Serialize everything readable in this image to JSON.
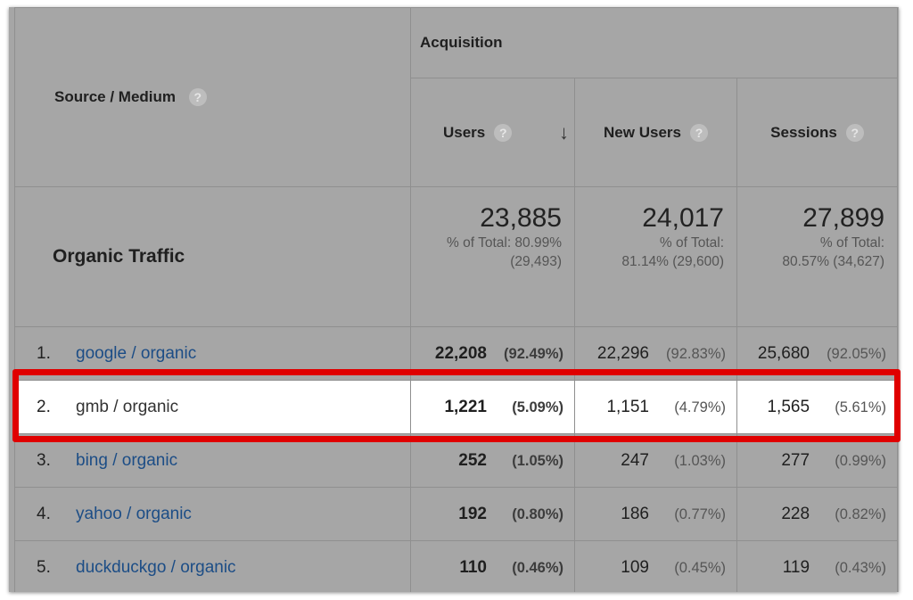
{
  "header": {
    "source_medium": "Source / Medium",
    "group": "Acquisition",
    "columns": [
      "Users",
      "New Users",
      "Sessions"
    ]
  },
  "icons": {
    "help": "question-mark-help-icon",
    "sort": "sort-descending-arrow-icon"
  },
  "totals": {
    "label": "Organic Traffic",
    "users": {
      "value": "23,885",
      "line1": "% of Total: 80.99%",
      "line2": "(29,493)"
    },
    "new_users": {
      "value": "24,017",
      "line1": "% of Total:",
      "line2": "81.14% (29,600)"
    },
    "sessions": {
      "value": "27,899",
      "line1": "% of Total:",
      "line2": "80.57% (34,627)"
    }
  },
  "rows": [
    {
      "num": "1.",
      "source": "google / organic",
      "users": "22,208",
      "users_pct": "(92.49%)",
      "new_users": "22,296",
      "new_users_pct": "(92.83%)",
      "sessions": "25,680",
      "sessions_pct": "(92.05%)"
    },
    {
      "num": "2.",
      "source": "gmb / organic",
      "users": "1,221",
      "users_pct": "(5.09%)",
      "new_users": "1,151",
      "new_users_pct": "(4.79%)",
      "sessions": "1,565",
      "sessions_pct": "(5.61%)"
    },
    {
      "num": "3.",
      "source": "bing / organic",
      "users": "252",
      "users_pct": "(1.05%)",
      "new_users": "247",
      "new_users_pct": "(1.03%)",
      "sessions": "277",
      "sessions_pct": "(0.99%)"
    },
    {
      "num": "4.",
      "source": "yahoo / organic",
      "users": "192",
      "users_pct": "(0.80%)",
      "new_users": "186",
      "new_users_pct": "(0.77%)",
      "sessions": "228",
      "sessions_pct": "(0.82%)"
    },
    {
      "num": "5.",
      "source": "duckduckgo / organic",
      "users": "110",
      "users_pct": "(0.46%)",
      "new_users": "109",
      "new_users_pct": "(0.45%)",
      "sessions": "119",
      "sessions_pct": "(0.43%)"
    }
  ],
  "highlighted_row": "gmb / organic",
  "colors": {
    "highlight_border": "#e00000",
    "link": "#1c4d86",
    "shade": "#a6a6a6"
  }
}
